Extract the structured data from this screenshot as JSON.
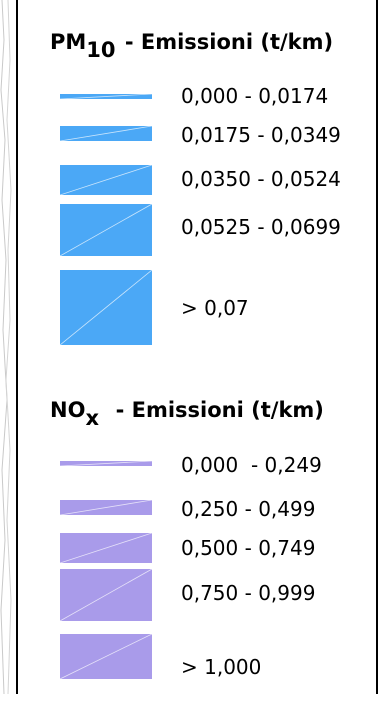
{
  "legend": {
    "sections": [
      {
        "pollutant": "PM",
        "subscript": "10",
        "title_rest": " - Emissioni (t/km)",
        "fill_color": "#4ba8f6",
        "classes": [
          {
            "label": "0,000 - 0,0174"
          },
          {
            "label": "0,0175 - 0,0349"
          },
          {
            "label": "0,0350 - 0,0524"
          },
          {
            "label": "0,0525 - 0,0699"
          },
          {
            "label": "> 0,07"
          }
        ]
      },
      {
        "pollutant": "NO",
        "subscript": "x",
        "title_rest": "  - Emissioni (t/km)",
        "fill_color": "#a99bea",
        "classes": [
          {
            "label": "0,000  - 0,249"
          },
          {
            "label": "0,250 - 0,499"
          },
          {
            "label": "0,500 - 0,749"
          },
          {
            "label": "0,750 - 0,999"
          },
          {
            "label": "> 1,000"
          }
        ]
      }
    ]
  }
}
